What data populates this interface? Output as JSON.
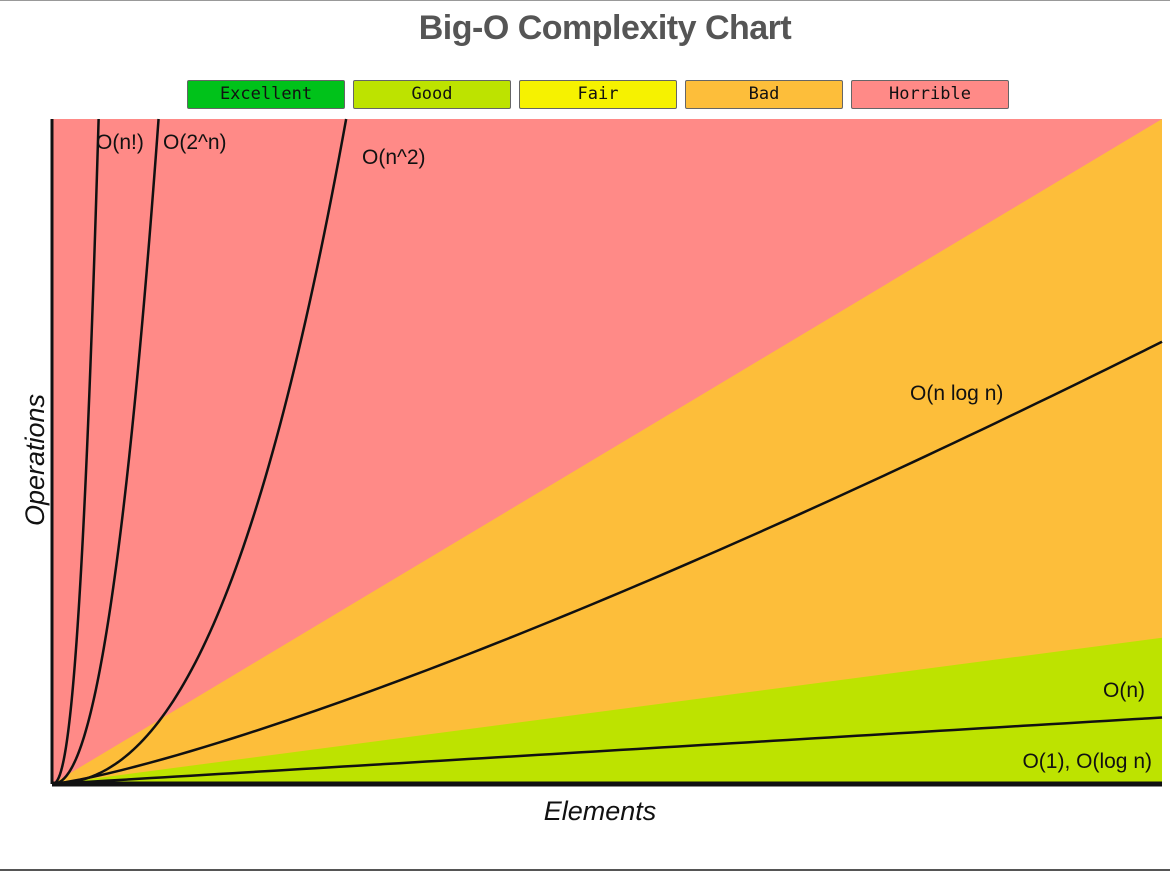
{
  "chart_data": {
    "type": "area",
    "title": "Big-O Complexity Chart",
    "xlabel": "Elements",
    "ylabel": "Operations",
    "xlim": [
      0,
      100
    ],
    "ylim": [
      0,
      1000
    ],
    "grid": false,
    "legend": {
      "placement": "top-center",
      "items": [
        {
          "label": "Excellent",
          "color": "#00c21a"
        },
        {
          "label": "Good",
          "color": "#bde300"
        },
        {
          "label": "Fair",
          "color": "#f6f200"
        },
        {
          "label": "Bad",
          "color": "#fdbe3a"
        },
        {
          "label": "Horrible",
          "color": "#ff8a87"
        }
      ]
    },
    "regions": [
      {
        "rating": "Good",
        "color": "#bde300",
        "upper_bound": {
          "x": [
            0,
            100
          ],
          "y": [
            0,
            220
          ]
        }
      },
      {
        "rating": "Bad",
        "color": "#fdbe3a",
        "upper_bound": {
          "x": [
            0,
            100
          ],
          "y": [
            0,
            1000
          ]
        }
      },
      {
        "rating": "Horrible",
        "color": "#ff8a87",
        "upper_bound": {
          "x": [
            0,
            100
          ],
          "y": [
            1000,
            1000
          ]
        }
      }
    ],
    "series": [
      {
        "name": "O(1), O(log n)",
        "x": [
          0,
          100
        ],
        "y": [
          0,
          0
        ]
      },
      {
        "name": "O(n)",
        "x": [
          0,
          100
        ],
        "y": [
          0,
          100
        ]
      },
      {
        "name": "O(n log n)",
        "x": [
          0,
          100
        ],
        "y": [
          0,
          665
        ]
      },
      {
        "name": "O(n^2)",
        "x": [
          0,
          26.5
        ],
        "y": [
          0,
          1000
        ]
      },
      {
        "name": "O(2^n)",
        "x": [
          0,
          9.6
        ],
        "y": [
          0,
          1000
        ]
      },
      {
        "name": "O(n!)",
        "x": [
          0,
          4.2
        ],
        "y": [
          0,
          1000
        ]
      }
    ]
  }
}
